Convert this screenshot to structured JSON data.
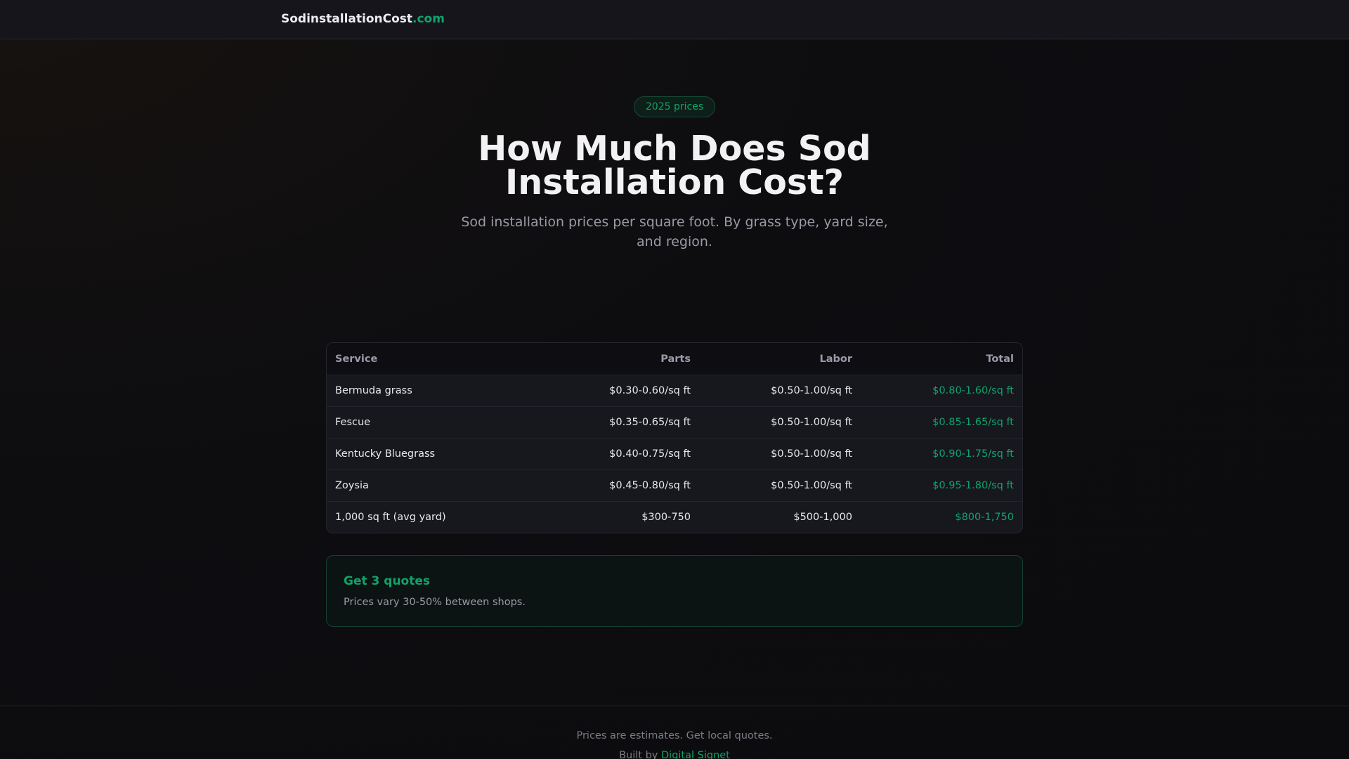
{
  "header": {
    "logo_main": "SodinstallationCost",
    "logo_tld": ".com"
  },
  "hero": {
    "badge": "2025 prices",
    "title": "How Much Does Sod Installation Cost?",
    "subtitle": "Sod installation prices per square foot. By grass type, yard size, and region."
  },
  "table": {
    "columns": [
      "Service",
      "Parts",
      "Labor",
      "Total"
    ],
    "rows": [
      [
        "Bermuda grass",
        "$0.30-0.60/sq ft",
        "$0.50-1.00/sq ft",
        "$0.80-1.60/sq ft"
      ],
      [
        "Fescue",
        "$0.35-0.65/sq ft",
        "$0.50-1.00/sq ft",
        "$0.85-1.65/sq ft"
      ],
      [
        "Kentucky Bluegrass",
        "$0.40-0.75/sq ft",
        "$0.50-1.00/sq ft",
        "$0.90-1.75/sq ft"
      ],
      [
        "Zoysia",
        "$0.45-0.80/sq ft",
        "$0.50-1.00/sq ft",
        "$0.95-1.80/sq ft"
      ],
      [
        "1,000 sq ft (avg yard)",
        "$300-750",
        "$500-1,000",
        "$800-1,750"
      ]
    ]
  },
  "card": {
    "title": "Get 3 quotes",
    "text": "Prices vary 30-50% between shops."
  },
  "footer": {
    "disclaimer": "Prices are estimates. Get local quotes.",
    "built_by": "Built by",
    "built_by_link": "Digital Signet"
  },
  "colors": {
    "accent": "#10a36b",
    "background": "#0d0d10"
  }
}
